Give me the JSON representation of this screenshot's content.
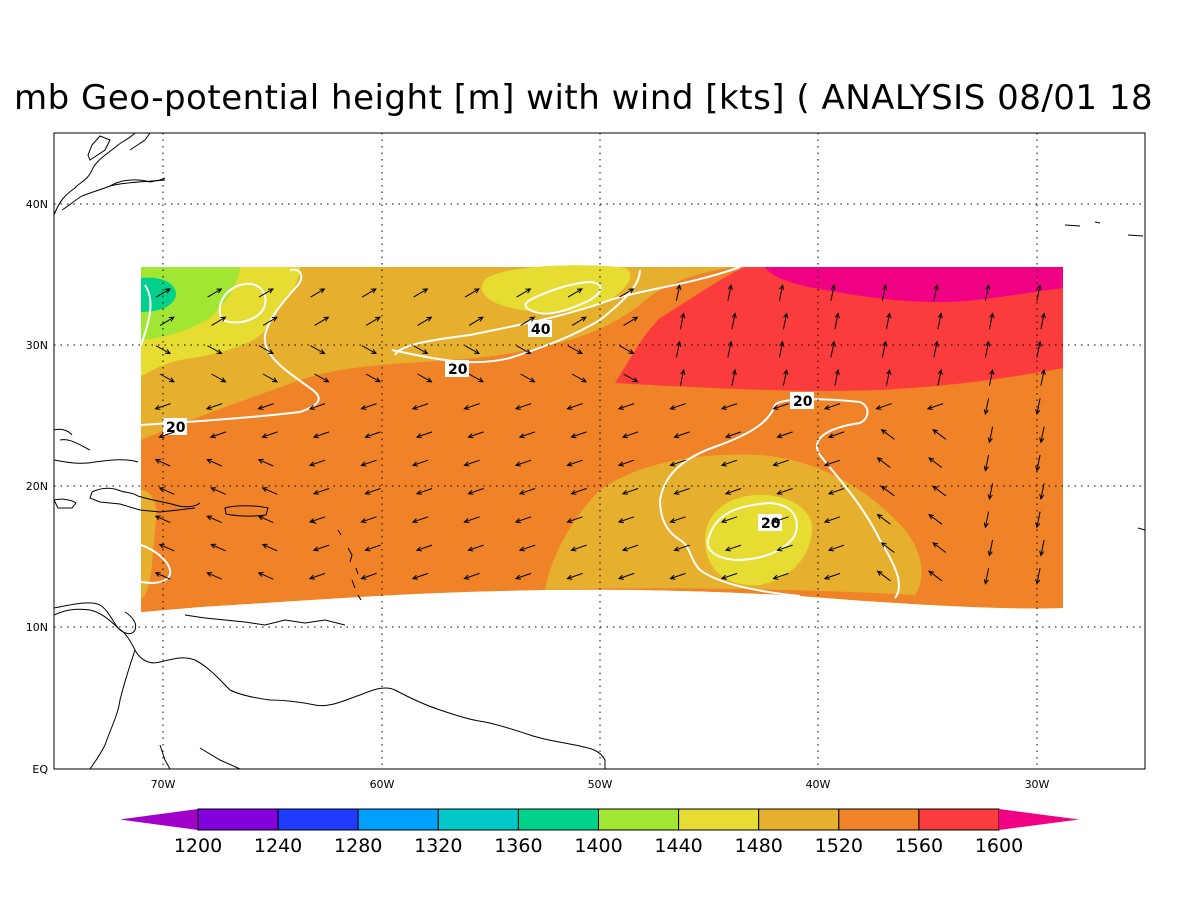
{
  "title": "mb Geo-potential height [m] with wind [kts] ( ANALYSIS 08/01 18",
  "axes": {
    "lat_labels": [
      "40N",
      "30N",
      "20N",
      "10N",
      "EQ"
    ],
    "lon_labels": [
      "70W",
      "60W",
      "50W",
      "40W",
      "30W"
    ]
  },
  "colorbar": {
    "labels": [
      "1200",
      "1240",
      "1280",
      "1320",
      "1360",
      "1400",
      "1440",
      "1480",
      "1520",
      "1560",
      "1600"
    ],
    "colors": [
      "#a000c8",
      "#8200dc",
      "#1e3cff",
      "#00a0ff",
      "#00c8c8",
      "#00d28c",
      "#a0e632",
      "#e6dc32",
      "#e6af2d",
      "#f08228",
      "#fa3c3c",
      "#f00082"
    ]
  },
  "fill_colors": {
    "h1400": "#00d28c",
    "h1440": "#a0e632",
    "h1480": "#e6dc32",
    "h1520": "#e6af2d",
    "h1560": "#f08228",
    "h1600": "#fa3c3c",
    "h1640": "#f00082"
  },
  "contour_labels": [
    "20",
    "40",
    "20",
    "20",
    "20"
  ]
}
